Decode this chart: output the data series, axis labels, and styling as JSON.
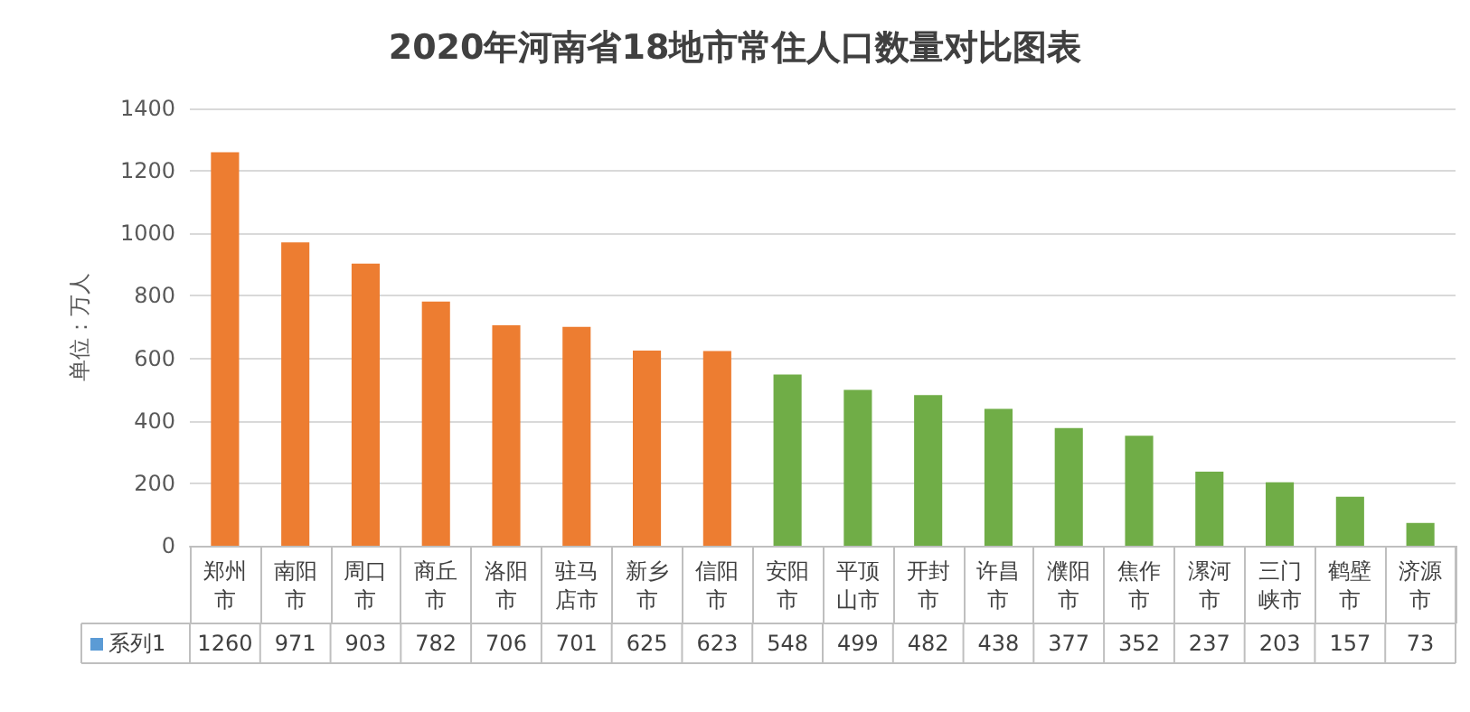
{
  "chart_data": {
    "type": "bar",
    "title": "2020年河南省18地市常住人口数量对比图表",
    "ylabel": "单位：万人",
    "categories": [
      "郑州市",
      "南阳市",
      "周口市",
      "商丘市",
      "洛阳市",
      "驻马店市",
      "新乡市",
      "信阳市",
      "安阳市",
      "平顶山市",
      "开封市",
      "许昌市",
      "濮阳市",
      "焦作市",
      "漯河市",
      "三门峡市",
      "鹤壁市",
      "济源市"
    ],
    "series": [
      {
        "name": "系列1",
        "color": "#5b9bd5",
        "colors": [
          "#ed7d31",
          "#ed7d31",
          "#ed7d31",
          "#ed7d31",
          "#ed7d31",
          "#ed7d31",
          "#ed7d31",
          "#ed7d31",
          "#70ad47",
          "#70ad47",
          "#70ad47",
          "#70ad47",
          "#70ad47",
          "#70ad47",
          "#70ad47",
          "#70ad47",
          "#70ad47",
          "#70ad47"
        ],
        "values": [
          1260,
          971,
          903,
          782,
          706,
          701,
          625,
          623,
          548,
          499,
          482,
          438,
          377,
          352,
          237,
          203,
          157,
          73
        ]
      }
    ],
    "ylim": [
      0,
      1400
    ],
    "yticks": [
      0,
      200,
      400,
      600,
      800,
      1000,
      1200,
      1400
    ],
    "grid": "y",
    "data_labels": true
  }
}
